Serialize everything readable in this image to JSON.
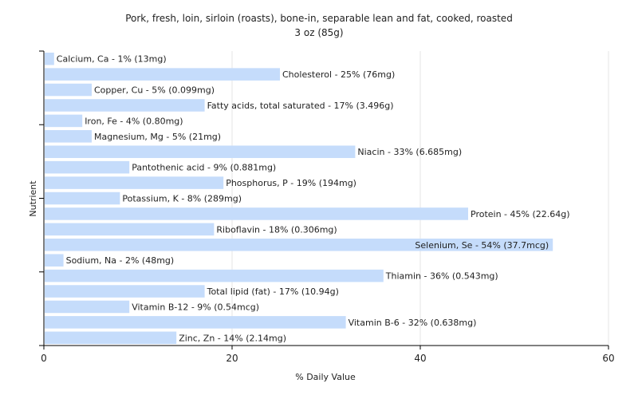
{
  "chart_data": {
    "type": "bar",
    "orientation": "horizontal",
    "title": "Pork, fresh, loin, sirloin (roasts), bone-in, separable lean and fat, cooked, roasted",
    "subtitle": "3 oz (85g)",
    "xlabel": "% Daily Value",
    "ylabel": "Nutrient",
    "xlim": [
      0,
      60
    ],
    "xticks": [
      0,
      20,
      40,
      60
    ],
    "grid": true,
    "bar_color": "#c5dcfb",
    "categories": [
      "Calcium, Ca",
      "Cholesterol",
      "Copper, Cu",
      "Fatty acids, total saturated",
      "Iron, Fe",
      "Magnesium, Mg",
      "Niacin",
      "Pantothenic acid",
      "Phosphorus, P",
      "Potassium, K",
      "Protein",
      "Riboflavin",
      "Selenium, Se",
      "Sodium, Na",
      "Thiamin",
      "Total lipid (fat)",
      "Vitamin B-12",
      "Vitamin B-6",
      "Zinc, Zn"
    ],
    "values": [
      1,
      25,
      5,
      17,
      4,
      5,
      33,
      9,
      19,
      8,
      45,
      18,
      54,
      2,
      36,
      17,
      9,
      32,
      14
    ],
    "labels": [
      "Calcium, Ca - 1% (13mg)",
      "Cholesterol - 25% (76mg)",
      "Copper, Cu - 5% (0.099mg)",
      "Fatty acids, total saturated - 17% (3.496g)",
      "Iron, Fe - 4% (0.80mg)",
      "Magnesium, Mg - 5% (21mg)",
      "Niacin - 33% (6.685mg)",
      "Pantothenic acid - 9% (0.881mg)",
      "Phosphorus, P - 19% (194mg)",
      "Potassium, K - 8% (289mg)",
      "Protein - 45% (22.64g)",
      "Riboflavin - 18% (0.306mg)",
      "Selenium, Se - 54% (37.7mcg)",
      "Sodium, Na - 2% (48mg)",
      "Thiamin - 36% (0.543mg)",
      "Total lipid (fat) - 17% (10.94g)",
      "Vitamin B-12 - 9% (0.54mcg)",
      "Vitamin B-6 - 32% (0.638mg)",
      "Zinc, Zn - 14% (2.14mg)"
    ]
  }
}
